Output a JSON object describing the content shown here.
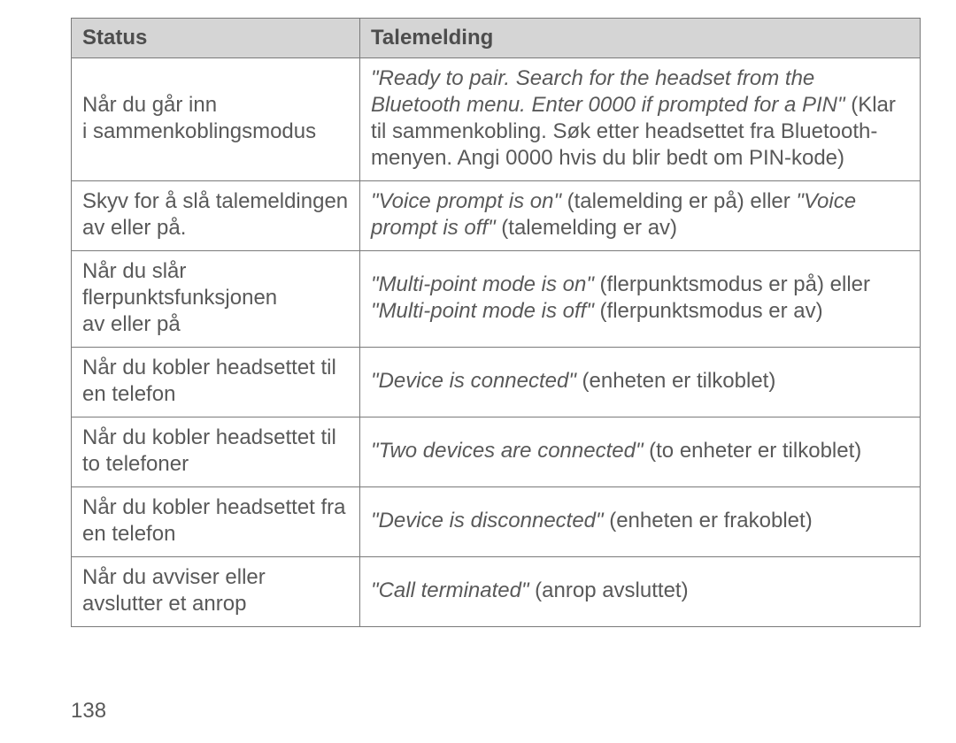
{
  "table": {
    "headers": {
      "status": "Status",
      "message": "Talemelding"
    },
    "rows": [
      {
        "status": "Når du går inn i sammenkoblingsmodus",
        "msg_html": "<span class=\"italic\">\"Ready to pair. Search for the headset from the Bluetooth menu. Enter 0000 if prompted for a PIN\"</span> (Klar til sammenkobling. Søk etter headsettet fra Bluetooth-menyen. Angi 0000 hvis du blir bedt om PIN-kode)"
      },
      {
        "status": "Skyv for å slå talemeldingen av eller på.",
        "msg_html": "<span class=\"italic\">\"Voice prompt is on\"</span> (talemelding er på) eller <span class=\"italic\">\"Voice prompt is off\"</span> (talemelding er av)"
      },
      {
        "status": "Når du slår flerpunktsfunksjonen av eller på",
        "msg_html": "<span class=\"italic\">\"Multi-point mode is on\"</span> (flerpunktsmodus er på) eller<br><span class=\"italic\">\"Multi-point mode is off\"</span> (flerpunktsmodus er av)"
      },
      {
        "status": "Når du kobler headsettet til en telefon",
        "msg_html": "<span class=\"italic\">\"Device is connected\"</span> (enheten er tilkoblet)"
      },
      {
        "status": "Når du kobler headsettet til to telefoner",
        "msg_html": "<span class=\"italic\">\"Two devices are connected\"</span> (to enheter er tilkoblet)"
      },
      {
        "status": "Når du kobler headsettet fra en telefon",
        "msg_html": "<span class=\"italic\">\"Device is disconnected\"</span> (enheten er frakoblet)"
      },
      {
        "status": "Når du avviser eller avslutter et anrop",
        "msg_html": "<span class=\"italic\">\"Call terminated\"</span> (anrop avsluttet)"
      }
    ]
  },
  "page_number": "138"
}
